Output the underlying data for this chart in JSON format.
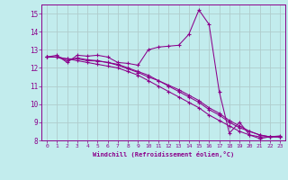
{
  "xlabel": "Windchill (Refroidissement éolien,°C)",
  "xlim": [
    -0.5,
    23.5
  ],
  "ylim": [
    8,
    15.5
  ],
  "xtick_vals": [
    0,
    1,
    2,
    3,
    4,
    5,
    6,
    7,
    8,
    9,
    10,
    11,
    12,
    13,
    14,
    15,
    16,
    17,
    18,
    19,
    20,
    21,
    22,
    23
  ],
  "ytick_vals": [
    8,
    9,
    10,
    11,
    12,
    13,
    14,
    15
  ],
  "background_color": "#c2eced",
  "grid_color": "#b0cccc",
  "line_color": "#8b008b",
  "lines": [
    {
      "x": [
        0,
        1,
        2,
        3,
        4,
        5,
        6,
        7,
        8,
        9,
        10,
        11,
        12,
        13,
        14,
        15,
        16,
        17,
        18,
        19,
        20,
        21,
        22,
        23
      ],
      "y": [
        12.6,
        12.7,
        12.3,
        12.7,
        12.65,
        12.7,
        12.6,
        12.3,
        12.25,
        12.15,
        13.0,
        13.15,
        13.2,
        13.25,
        13.85,
        15.2,
        14.4,
        10.7,
        8.4,
        9.0,
        8.3,
        8.1,
        8.2,
        8.25
      ]
    },
    {
      "x": [
        0,
        1,
        2,
        3,
        4,
        5,
        6,
        7,
        8,
        9,
        10,
        11,
        12,
        13,
        14,
        15,
        16,
        17,
        18,
        19,
        20,
        21,
        22,
        23
      ],
      "y": [
        12.6,
        12.6,
        12.4,
        12.55,
        12.45,
        12.4,
        12.3,
        12.15,
        11.95,
        11.75,
        11.5,
        11.3,
        11.05,
        10.8,
        10.5,
        10.2,
        9.8,
        9.5,
        9.1,
        8.8,
        8.5,
        8.3,
        8.2,
        8.2
      ]
    },
    {
      "x": [
        0,
        1,
        2,
        3,
        4,
        5,
        6,
        7,
        8,
        9,
        10,
        11,
        12,
        13,
        14,
        15,
        16,
        17,
        18,
        19,
        20,
        21,
        22,
        23
      ],
      "y": [
        12.6,
        12.6,
        12.5,
        12.5,
        12.4,
        12.38,
        12.3,
        12.2,
        12.0,
        11.8,
        11.6,
        11.3,
        11.0,
        10.7,
        10.4,
        10.1,
        9.7,
        9.4,
        9.0,
        8.7,
        8.5,
        8.3,
        8.2,
        8.2
      ]
    },
    {
      "x": [
        0,
        1,
        2,
        3,
        4,
        5,
        6,
        7,
        8,
        9,
        10,
        11,
        12,
        13,
        14,
        15,
        16,
        17,
        18,
        19,
        20,
        21,
        22,
        23
      ],
      "y": [
        12.6,
        12.6,
        12.5,
        12.4,
        12.3,
        12.2,
        12.1,
        12.0,
        11.8,
        11.6,
        11.3,
        11.0,
        10.7,
        10.4,
        10.1,
        9.8,
        9.4,
        9.1,
        8.8,
        8.5,
        8.3,
        8.2,
        8.2,
        8.2
      ]
    }
  ]
}
